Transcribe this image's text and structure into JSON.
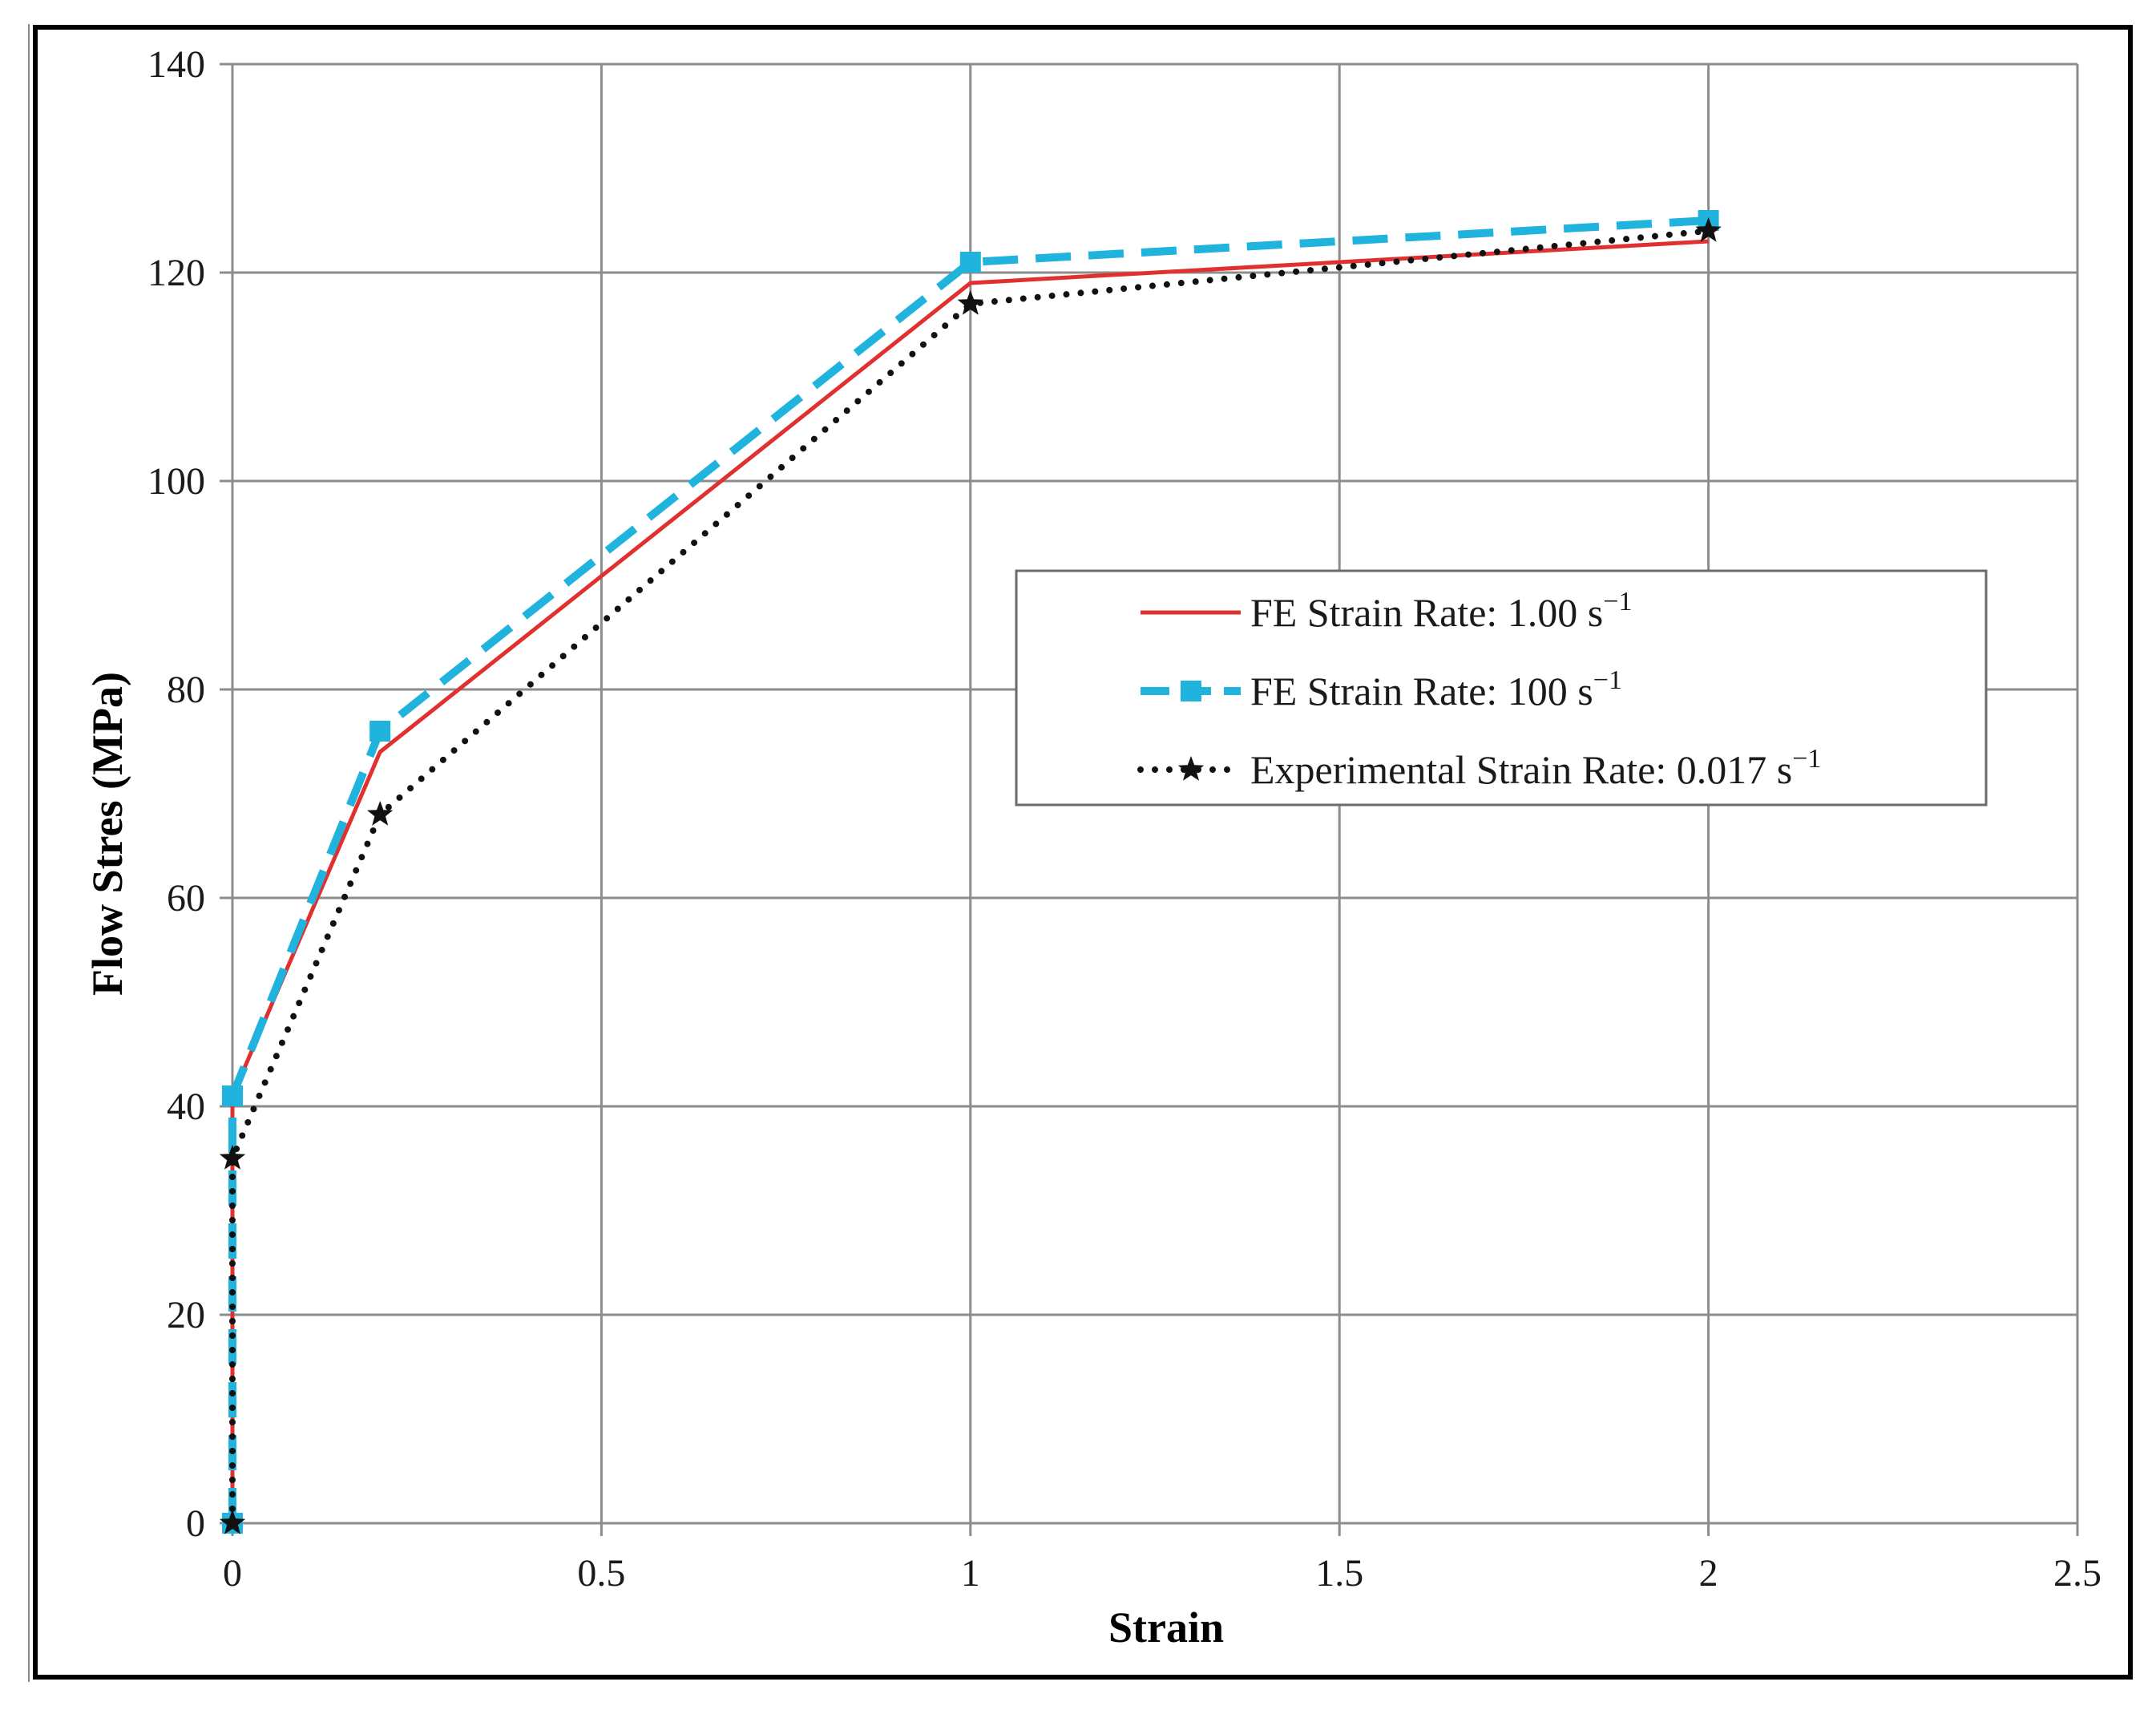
{
  "chart_data": {
    "type": "line",
    "title": "",
    "xlabel": "Strain",
    "ylabel": "Flow Stres (MPa)",
    "xlim": [
      0,
      2.5
    ],
    "ylim": [
      0,
      140
    ],
    "xticks": [
      0,
      0.5,
      1,
      1.5,
      2,
      2.5
    ],
    "xtick_labels": [
      "0",
      "0.5",
      "1",
      "1.5",
      "2",
      "2.5"
    ],
    "yticks": [
      0,
      20,
      40,
      60,
      80,
      100,
      120,
      140
    ],
    "ytick_labels": [
      "0",
      "20",
      "40",
      "60",
      "80",
      "100",
      "120",
      "140"
    ],
    "grid": true,
    "legend_position": "center-right",
    "series": [
      {
        "name": "FE Strain Rate: 1.00 s",
        "sup": "−1",
        "color": "#e03030",
        "style": "solid",
        "marker": "none",
        "x": [
          0,
          0,
          0.2,
          1,
          2
        ],
        "y": [
          0,
          41,
          74,
          119,
          123
        ]
      },
      {
        "name": "FE Strain Rate: 100 s",
        "sup": "−1",
        "color": "#1fb3de",
        "style": "dashed",
        "marker": "square",
        "x": [
          0,
          0,
          0.2,
          1,
          2
        ],
        "y": [
          0,
          41,
          76,
          121,
          125
        ]
      },
      {
        "name": "Experimental Strain Rate: 0.017 s",
        "sup": "−1",
        "color": "#111111",
        "style": "dotted",
        "marker": "star",
        "x": [
          0,
          0,
          0.2,
          1,
          2
        ],
        "y": [
          0,
          35,
          68,
          117,
          124
        ]
      }
    ]
  }
}
